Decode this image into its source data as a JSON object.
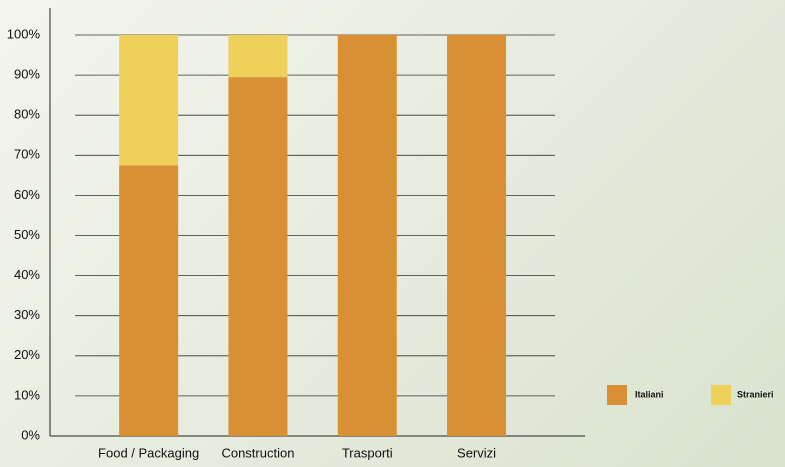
{
  "chart_data": {
    "type": "stacked_bar",
    "categories": [
      "Food / Packaging",
      "Construction",
      "Trasporti",
      "Servizi"
    ],
    "series": [
      {
        "name": "Italiani",
        "color": "#d98f33",
        "values": [
          67.5,
          89.5,
          100,
          100
        ]
      },
      {
        "name": "Stranieri",
        "color": "#eed05a",
        "values": [
          32.5,
          10.5,
          0,
          0
        ]
      }
    ],
    "ylim": [
      0,
      100
    ],
    "yticks": [
      {
        "value": 0,
        "label": "0%"
      },
      {
        "value": 10,
        "label": "10%"
      },
      {
        "value": 20,
        "label": "20%"
      },
      {
        "value": 30,
        "label": "30%"
      },
      {
        "value": 40,
        "label": "40%"
      },
      {
        "value": 50,
        "label": "50%"
      },
      {
        "value": 60,
        "label": "60%"
      },
      {
        "value": 70,
        "label": "70%"
      },
      {
        "value": 80,
        "label": "80%"
      },
      {
        "value": 90,
        "label": "90%"
      },
      {
        "value": 100,
        "label": "100%"
      }
    ],
    "grid": true,
    "legend": "bottom-right"
  }
}
